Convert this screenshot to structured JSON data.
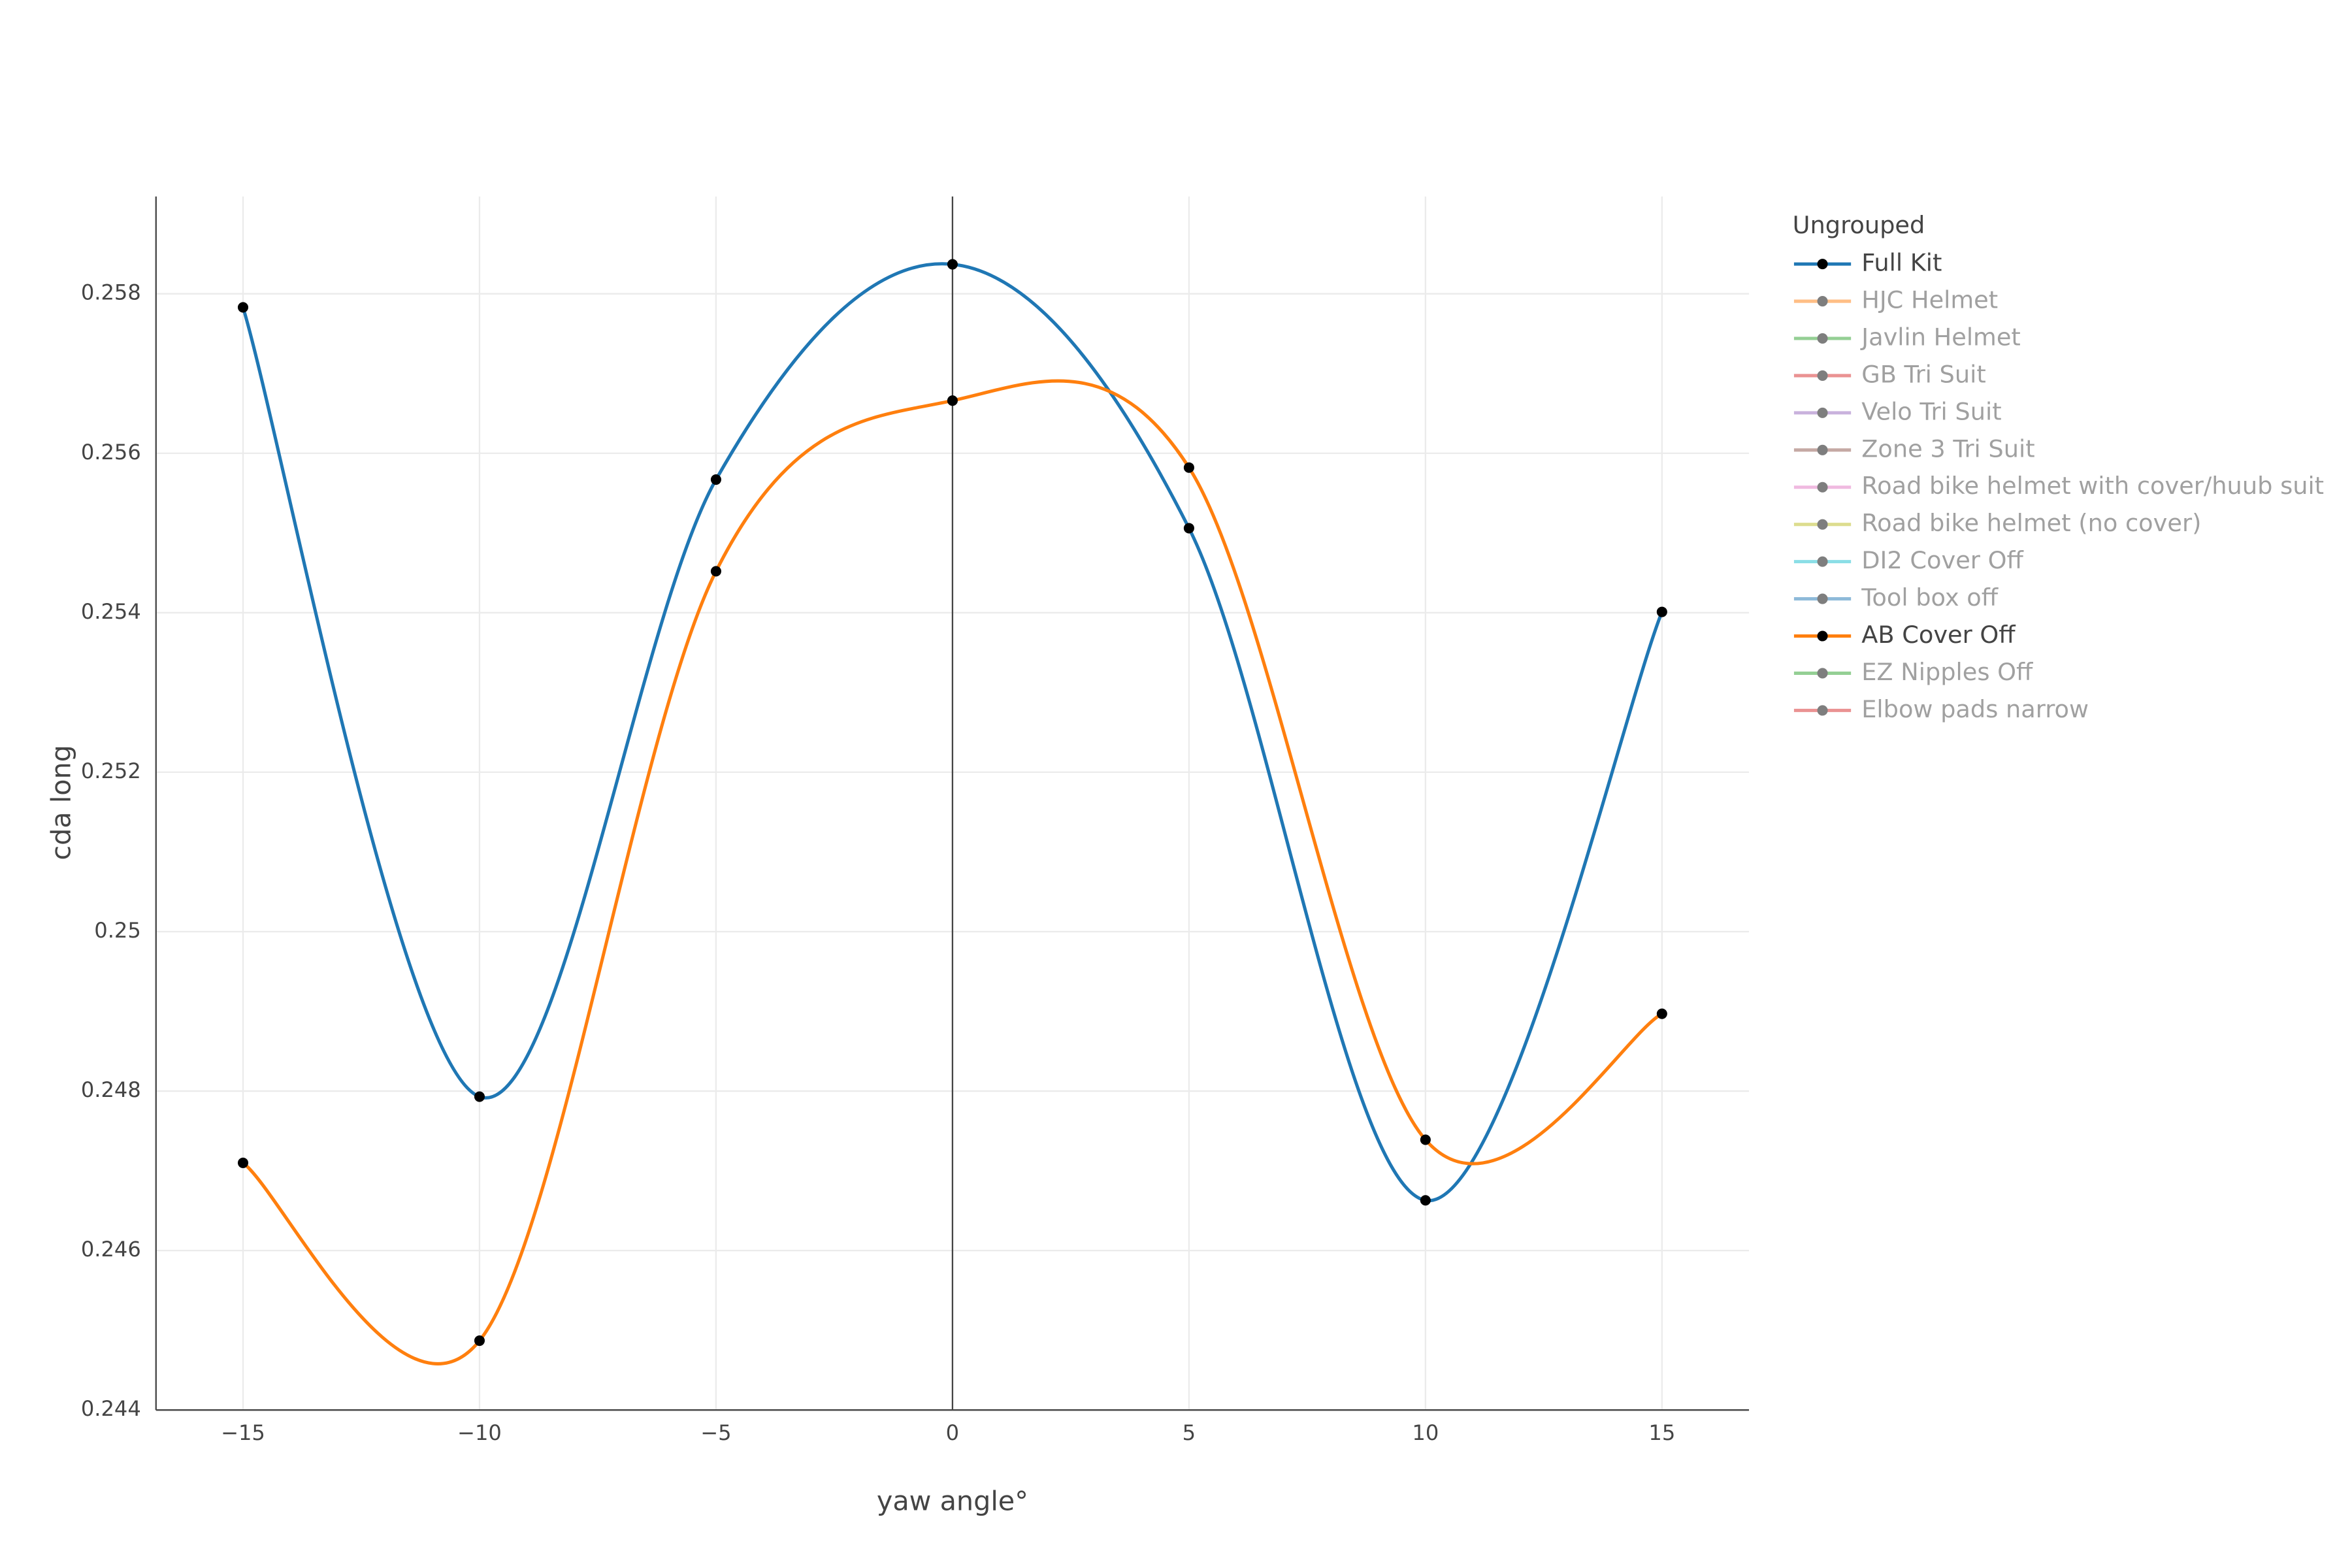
{
  "chart_data": {
    "type": "line",
    "xlabel": "yaw angle°",
    "ylabel": "cda long",
    "legend_title": "Ungrouped",
    "legend_position": "right",
    "smoothing": "spline",
    "grid": true,
    "x": [
      -15,
      -10,
      -5,
      0,
      5,
      10,
      15
    ],
    "xlim": [
      -16.84,
      16.84
    ],
    "xticks": [
      {
        "value": -15,
        "label": "−15"
      },
      {
        "value": -10,
        "label": "−10"
      },
      {
        "value": -5,
        "label": "−5"
      },
      0,
      5,
      10,
      15
    ],
    "ylim": [
      0.244,
      0.25922
    ],
    "yticks": [
      0.244,
      0.246,
      0.248,
      0.25,
      0.252,
      0.254,
      0.256,
      0.258
    ],
    "series": [
      {
        "name": "Full Kit",
        "color": "#1f77b4",
        "visible": true,
        "values": [
          0.25783,
          0.24793,
          0.25567,
          0.25837,
          0.25506,
          0.24663,
          0.25401
        ]
      },
      {
        "name": "HJC Helmet",
        "color": "#ff7f0e",
        "visible": false
      },
      {
        "name": "Javlin Helmet",
        "color": "#2ca02c",
        "visible": false
      },
      {
        "name": "GB Tri Suit",
        "color": "#d62728",
        "visible": false
      },
      {
        "name": "Velo Tri Suit",
        "color": "#9467bd",
        "visible": false
      },
      {
        "name": "Zone 3 Tri Suit",
        "color": "#8c564b",
        "visible": false
      },
      {
        "name": "Road bike helmet with cover/huub suit",
        "color": "#e377c2",
        "visible": false
      },
      {
        "name": "Road bike helmet (no cover)",
        "color": "#bcbd22",
        "visible": false
      },
      {
        "name": "DI2 Cover Off",
        "color": "#17becf",
        "visible": false
      },
      {
        "name": "Tool box off",
        "color": "#1f77b4",
        "visible": false
      },
      {
        "name": "AB Cover Off",
        "color": "#ff7f0e",
        "visible": true,
        "values": [
          0.2471,
          0.24487,
          0.25452,
          0.25666,
          0.25582,
          0.24739,
          0.24897
        ]
      },
      {
        "name": "EZ Nipples Off",
        "color": "#2ca02c",
        "visible": false
      },
      {
        "name": "Elbow pads narrow",
        "color": "#d62728",
        "visible": false
      }
    ]
  }
}
